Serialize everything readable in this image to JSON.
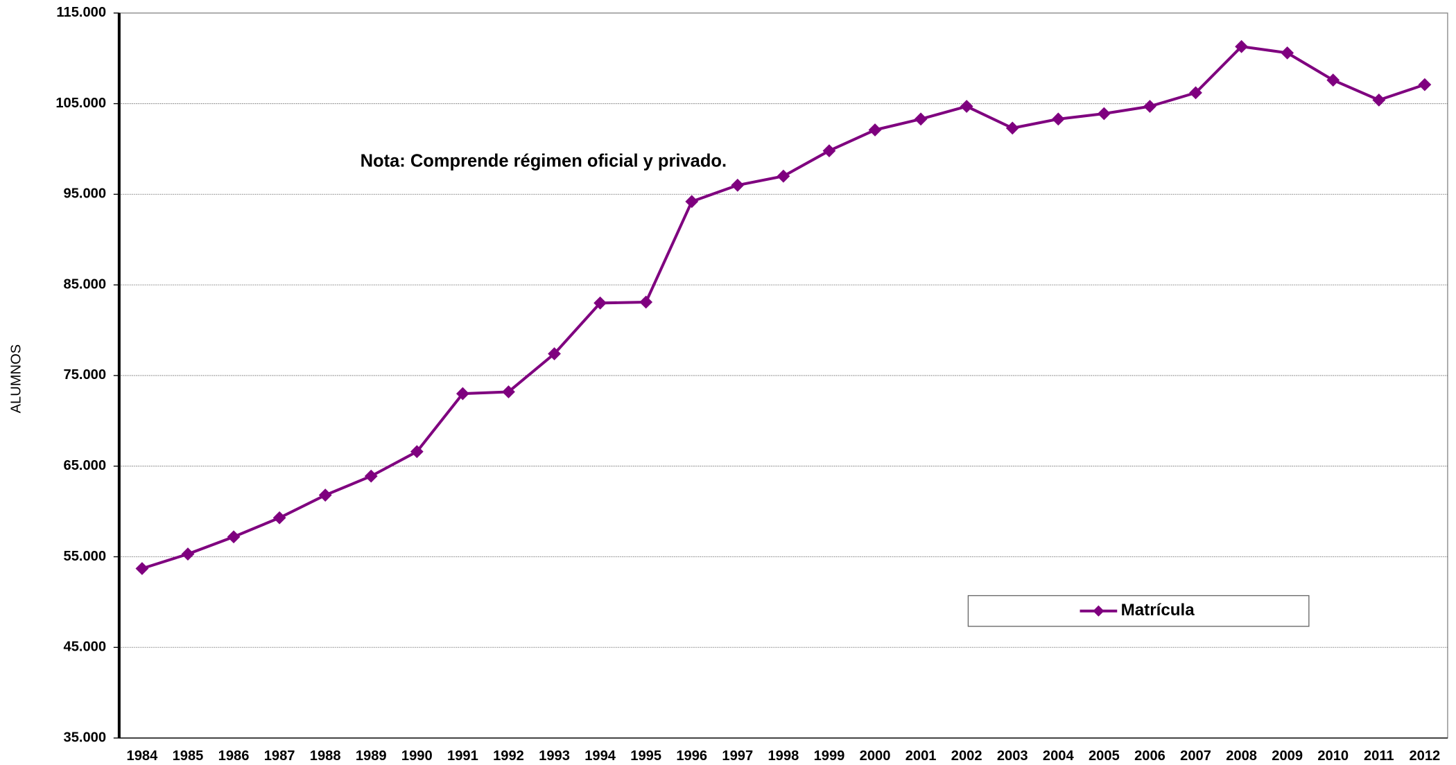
{
  "chart_data": {
    "type": "line",
    "y_label": "ALUMNOS",
    "annotation": "Nota: Comprende régimen oficial y privado.",
    "categories": [
      "1984",
      "1985",
      "1986",
      "1987",
      "1988",
      "1989",
      "1990",
      "1991",
      "1992",
      "1993",
      "1994",
      "1995",
      "1996",
      "1997",
      "1998",
      "1999",
      "2000",
      "2001",
      "2002",
      "2003",
      "2004",
      "2005",
      "2006",
      "2007",
      "2008",
      "2009",
      "2010",
      "2011",
      "2012"
    ],
    "series": [
      {
        "name": "Matrícula",
        "color": "#7f007f",
        "values": [
          53700,
          55300,
          57200,
          59300,
          61800,
          63900,
          66600,
          73000,
          73200,
          77400,
          83000,
          83100,
          94200,
          96000,
          97000,
          99800,
          102100,
          103300,
          104700,
          102300,
          103300,
          103900,
          104700,
          106200,
          111300,
          110600,
          107600,
          105400,
          107100
        ]
      }
    ],
    "ylim": [
      35000,
      115000
    ],
    "yticks": [
      {
        "value": 35000,
        "label": "35.000"
      },
      {
        "value": 45000,
        "label": "45.000"
      },
      {
        "value": 55000,
        "label": "55.000"
      },
      {
        "value": 65000,
        "label": "65.000"
      },
      {
        "value": 75000,
        "label": "75.000"
      },
      {
        "value": 85000,
        "label": "85.000"
      },
      {
        "value": 95000,
        "label": "95.000"
      },
      {
        "value": 105000,
        "label": "105.000"
      },
      {
        "value": 115000,
        "label": "115.000"
      }
    ],
    "grid": true,
    "legend": "lower right"
  }
}
